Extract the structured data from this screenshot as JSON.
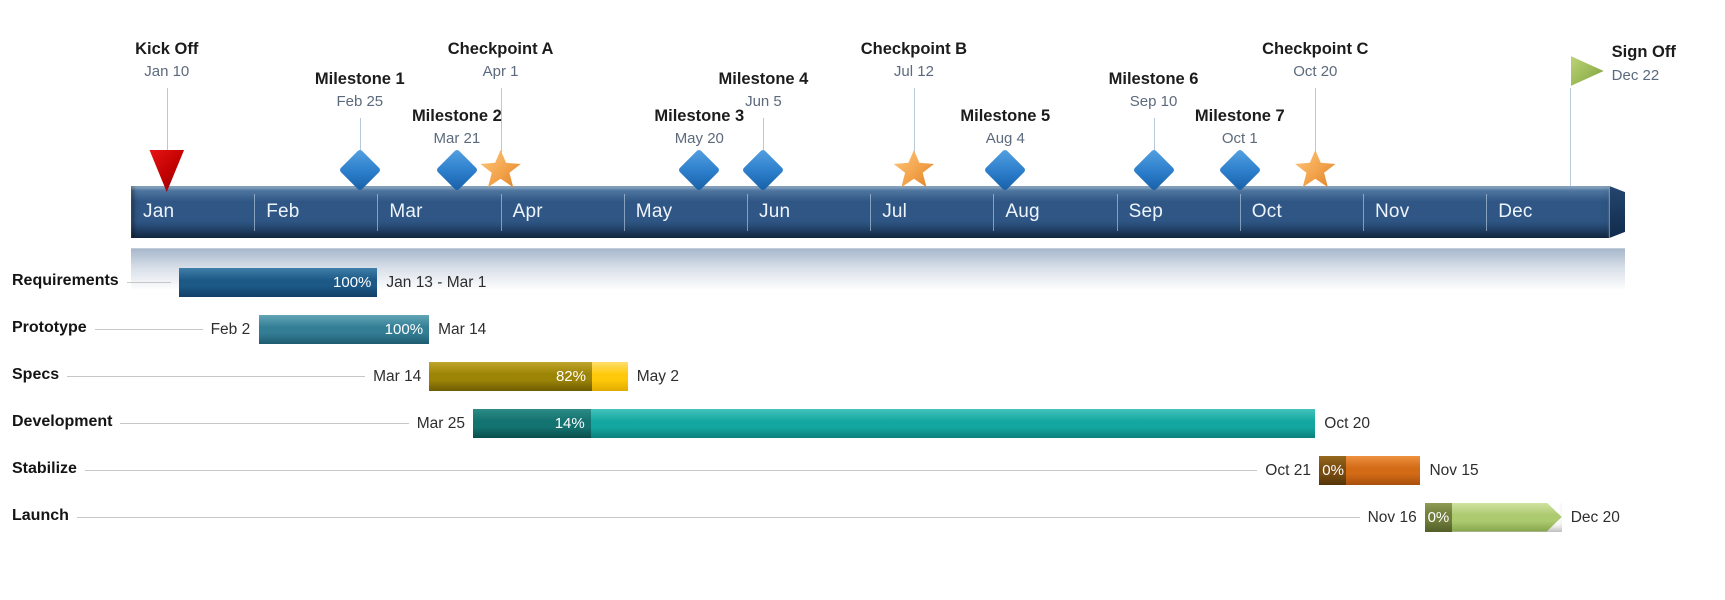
{
  "chart_data": {
    "type": "gantt-timeline",
    "months": [
      "Jan",
      "Feb",
      "Mar",
      "Apr",
      "May",
      "Jun",
      "Jul",
      "Aug",
      "Sep",
      "Oct",
      "Nov",
      "Dec"
    ],
    "days_in_month": [
      31,
      28,
      31,
      30,
      31,
      30,
      31,
      31,
      30,
      31,
      30,
      31
    ],
    "timeline_colors": {
      "band_light": "#5B83AB",
      "band_main": "#2F5684",
      "band_dark": "#1B3A5F",
      "cap_light": "#24466F",
      "cap_dark": "#102B4C",
      "reflection": "#91A5BE"
    },
    "marker_colors": {
      "triangle-down": [
        "#E81414",
        "#C00000",
        "#7F0A0A"
      ],
      "diamond": [
        "#55A2E2",
        "#2B7DCB",
        "#185FA5"
      ],
      "star": [
        "#FFC97E",
        "#F2A24A",
        "#D87C1E"
      ],
      "flag": [
        "#BCD379",
        "#9AB956",
        "#789839"
      ]
    },
    "milestones": [
      {
        "name": "Kick Off",
        "date": "Jan 10",
        "month": 0,
        "day": 10,
        "marker": "triangle-down",
        "level": "high"
      },
      {
        "name": "Milestone 1",
        "date": "Feb 25",
        "month": 1,
        "day": 25,
        "marker": "diamond",
        "level": "mid"
      },
      {
        "name": "Milestone 2",
        "date": "Mar 21",
        "month": 2,
        "day": 21,
        "marker": "diamond",
        "level": "low"
      },
      {
        "name": "Checkpoint A",
        "date": "Apr 1",
        "month": 3,
        "day": 1,
        "marker": "star",
        "level": "high"
      },
      {
        "name": "Milestone 3",
        "date": "May 20",
        "month": 4,
        "day": 20,
        "marker": "diamond",
        "level": "low"
      },
      {
        "name": "Milestone 4",
        "date": "Jun 5",
        "month": 5,
        "day": 5,
        "marker": "diamond",
        "level": "mid"
      },
      {
        "name": "Checkpoint B",
        "date": "Jul 12",
        "month": 6,
        "day": 12,
        "marker": "star",
        "level": "high"
      },
      {
        "name": "Milestone 5",
        "date": "Aug 4",
        "month": 7,
        "day": 4,
        "marker": "diamond",
        "level": "low"
      },
      {
        "name": "Milestone 6",
        "date": "Sep 10",
        "month": 8,
        "day": 10,
        "marker": "diamond",
        "level": "mid"
      },
      {
        "name": "Milestone 7",
        "date": "Oct 1",
        "month": 9,
        "day": 1,
        "marker": "diamond",
        "level": "low"
      },
      {
        "name": "Checkpoint C",
        "date": "Oct 20",
        "month": 9,
        "day": 20,
        "marker": "star",
        "level": "high"
      },
      {
        "name": "Sign Off",
        "date": "Dec 22",
        "month": 11,
        "day": 22,
        "marker": "flag",
        "level": "flag"
      }
    ],
    "tasks": [
      {
        "name": "Requirements",
        "percent": 100,
        "percent_label": "100%",
        "start": {
          "month": 0,
          "day": 13
        },
        "end": {
          "month": 2,
          "day": 1
        },
        "start_label": "",
        "end_label": "Jan 13 - Mar 1",
        "arrow": false,
        "done_colors": [
          "#3F7FA8",
          "#1D5987",
          "#103F66"
        ],
        "rest_colors": null
      },
      {
        "name": "Prototype",
        "percent": 100,
        "percent_label": "100%",
        "start": {
          "month": 1,
          "day": 2
        },
        "end": {
          "month": 2,
          "day": 14
        },
        "start_label": "Feb 2",
        "end_label": "Mar 14",
        "arrow": false,
        "done_colors": [
          "#62A5B6",
          "#347E95",
          "#1E5B6F"
        ],
        "rest_colors": null
      },
      {
        "name": "Specs",
        "percent": 82,
        "percent_label": "82%",
        "start": {
          "month": 2,
          "day": 14
        },
        "end": {
          "month": 4,
          "day": 2
        },
        "start_label": "Mar 14",
        "end_label": "May 2",
        "arrow": false,
        "done_colors": [
          "#BFA52A",
          "#9C8406",
          "#6E5C04"
        ],
        "rest_colors": [
          "#FFDE6B",
          "#FFC90B",
          "#E0AA00"
        ]
      },
      {
        "name": "Development",
        "percent": 14,
        "percent_label": "14%",
        "start": {
          "month": 2,
          "day": 25
        },
        "end": {
          "month": 9,
          "day": 20
        },
        "start_label": "Mar 25",
        "end_label": "Oct 20",
        "arrow": false,
        "done_colors": [
          "#2E8B85",
          "#137370",
          "#0A4E4C"
        ],
        "rest_colors": [
          "#43C3BC",
          "#14A7A1",
          "#0C807B"
        ]
      },
      {
        "name": "Stabilize",
        "percent": 0,
        "percent_label": "0%",
        "start": {
          "month": 9,
          "day": 21
        },
        "end": {
          "month": 10,
          "day": 15
        },
        "start_label": "Oct 21",
        "end_label": "Nov 15",
        "arrow": false,
        "done_colors": [
          "#95691E",
          "#784B10",
          "#53340A"
        ],
        "rest_colors": [
          "#EE9140",
          "#D26A16",
          "#A84F0D"
        ]
      },
      {
        "name": "Launch",
        "percent": 0,
        "percent_label": "0%",
        "start": {
          "month": 10,
          "day": 16
        },
        "end": {
          "month": 11,
          "day": 20
        },
        "start_label": "Nov 16",
        "end_label": "Dec 20",
        "arrow": true,
        "done_colors": [
          "#8F9C53",
          "#6F7C3A",
          "#515E29"
        ],
        "rest_colors": [
          "#CFE2A0",
          "#ACCA70",
          "#85A348"
        ]
      }
    ]
  }
}
